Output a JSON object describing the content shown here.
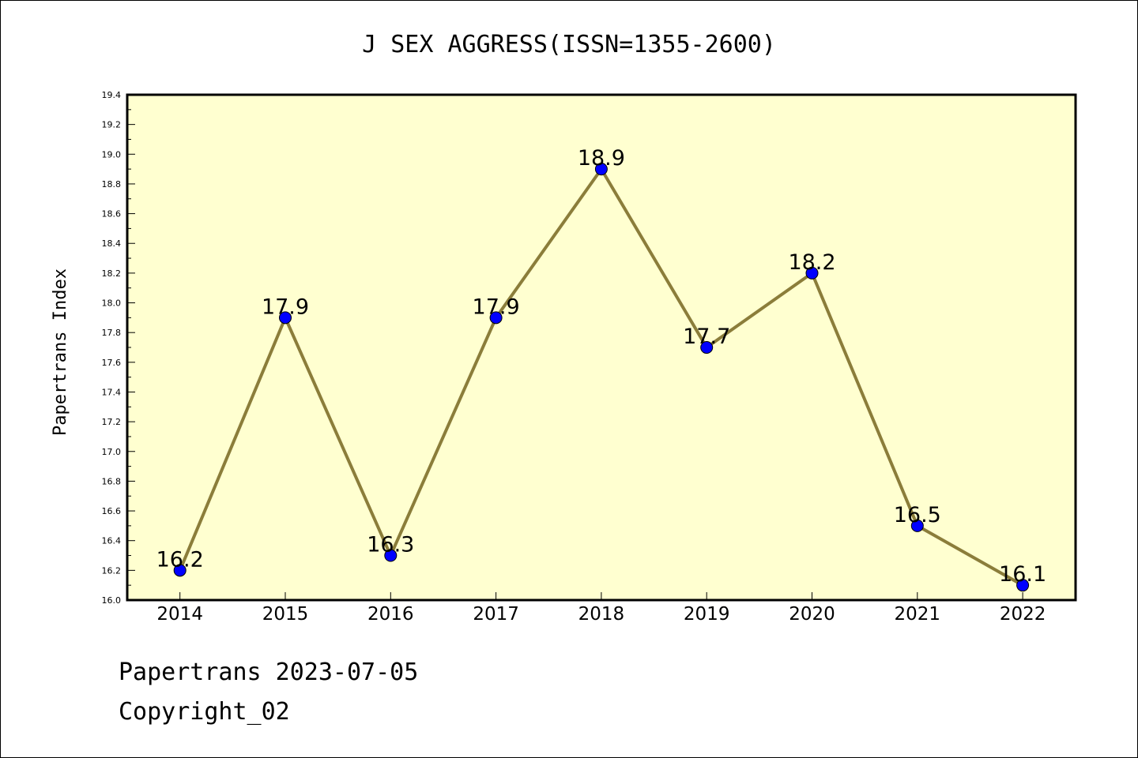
{
  "chart_data": {
    "type": "line",
    "title": "J SEX AGGRESS(ISSN=1355-2600)",
    "xlabel": "",
    "ylabel": "Papertrans Index",
    "categories": [
      "2014",
      "2015",
      "2016",
      "2017",
      "2018",
      "2019",
      "2020",
      "2021",
      "2022"
    ],
    "values": [
      16.2,
      17.9,
      16.3,
      17.9,
      18.9,
      17.7,
      18.2,
      16.5,
      16.1
    ],
    "data_labels": [
      "16.2",
      "17.9",
      "16.3",
      "17.9",
      "18.9",
      "17.7",
      "18.2",
      "16.5",
      "16.1"
    ],
    "ylim": [
      16.0,
      19.4
    ],
    "yticks": [
      "16.0",
      "16.2",
      "16.4",
      "16.6",
      "16.8",
      "17.0",
      "17.2",
      "17.4",
      "17.6",
      "17.8",
      "18.0",
      "18.2",
      "18.4",
      "18.6",
      "18.8",
      "19.0",
      "19.2",
      "19.4"
    ],
    "grid": false,
    "colors": {
      "plot_background": "#ffffd0",
      "line": "#8b7d3a",
      "marker": "#0000ff"
    }
  },
  "footer": {
    "line1": "Papertrans 2023-07-05",
    "line2": "Copyright_02"
  }
}
